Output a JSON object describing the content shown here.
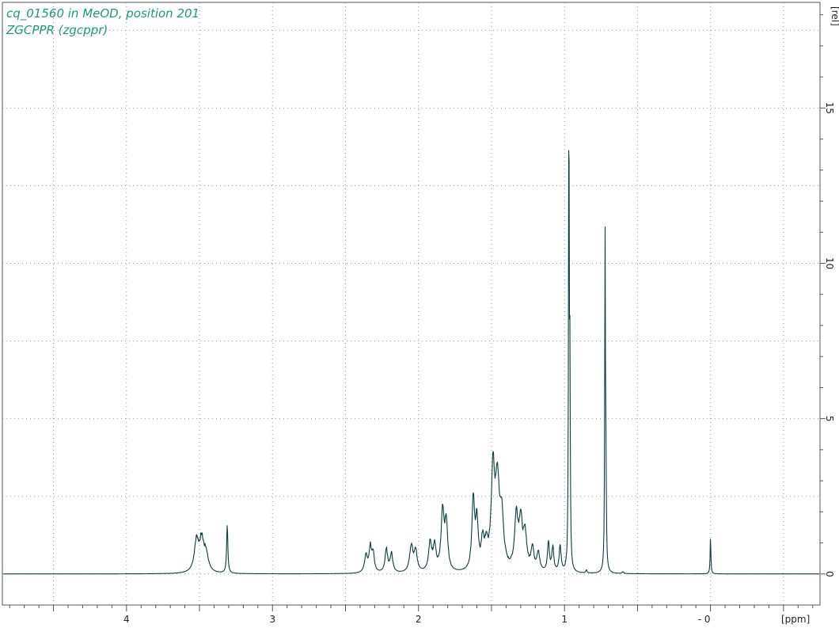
{
  "colors": {
    "spectrum": "#0e3d3d",
    "title": "#1a9a7a",
    "frame": "#555555",
    "grid": "#9a9a9a",
    "background": "#ffffff"
  },
  "chart_data": {
    "type": "line",
    "title_lines": [
      "cq_01560 in MeOD, position 201",
      "ZGCPPR (zgcppr)"
    ],
    "x_axis": {
      "unit_label": "[ppm]",
      "reversed": true,
      "range": [
        4.85,
        -0.75
      ],
      "major_ticks": [
        4,
        3,
        2,
        1,
        0
      ],
      "tick_labels": [
        "4",
        "3",
        "2",
        "1",
        "- 0"
      ]
    },
    "y_axis": {
      "unit_label": "[rel]",
      "range": [
        -1.0,
        18.4
      ],
      "major_ticks": [
        0,
        5,
        10,
        15
      ],
      "tick_labels": [
        "0",
        "5",
        "10",
        "15"
      ],
      "position": "right"
    },
    "grid": true,
    "baseline": 0,
    "series": [
      {
        "peaks": [
          {
            "shift": 3.52,
            "height": 1.0,
            "width": 0.018
          },
          {
            "shift": 3.485,
            "height": 0.95,
            "width": 0.018
          },
          {
            "shift": 3.455,
            "height": 0.55,
            "width": 0.018
          },
          {
            "shift": 3.31,
            "height": 1.55,
            "width": 0.005
          },
          {
            "shift": 2.36,
            "height": 0.55,
            "width": 0.012
          },
          {
            "shift": 2.33,
            "height": 0.8,
            "width": 0.01
          },
          {
            "shift": 2.31,
            "height": 0.55,
            "width": 0.01
          },
          {
            "shift": 2.22,
            "height": 0.75,
            "width": 0.011
          },
          {
            "shift": 2.185,
            "height": 0.6,
            "width": 0.011
          },
          {
            "shift": 2.05,
            "height": 0.85,
            "width": 0.013
          },
          {
            "shift": 2.02,
            "height": 0.7,
            "width": 0.013
          },
          {
            "shift": 1.92,
            "height": 0.9,
            "width": 0.013
          },
          {
            "shift": 1.89,
            "height": 0.8,
            "width": 0.012
          },
          {
            "shift": 1.835,
            "height": 1.85,
            "width": 0.012
          },
          {
            "shift": 1.81,
            "height": 1.5,
            "width": 0.012
          },
          {
            "shift": 1.625,
            "height": 2.25,
            "width": 0.011
          },
          {
            "shift": 1.6,
            "height": 1.5,
            "width": 0.011
          },
          {
            "shift": 1.56,
            "height": 0.9,
            "width": 0.012
          },
          {
            "shift": 1.535,
            "height": 0.7,
            "width": 0.012
          },
          {
            "shift": 1.49,
            "height": 3.1,
            "width": 0.014
          },
          {
            "shift": 1.46,
            "height": 2.6,
            "width": 0.016
          },
          {
            "shift": 1.43,
            "height": 1.6,
            "width": 0.016
          },
          {
            "shift": 1.33,
            "height": 1.7,
            "width": 0.014
          },
          {
            "shift": 1.3,
            "height": 1.5,
            "width": 0.014
          },
          {
            "shift": 1.27,
            "height": 1.1,
            "width": 0.014
          },
          {
            "shift": 1.22,
            "height": 0.75,
            "width": 0.012
          },
          {
            "shift": 1.18,
            "height": 0.6,
            "width": 0.012
          },
          {
            "shift": 1.11,
            "height": 0.95,
            "width": 0.008
          },
          {
            "shift": 1.08,
            "height": 0.8,
            "width": 0.008
          },
          {
            "shift": 1.03,
            "height": 0.85,
            "width": 0.008
          },
          {
            "shift": 0.97,
            "height": 14.9,
            "width": 0.003
          },
          {
            "shift": 0.963,
            "height": 5.9,
            "width": 0.003
          },
          {
            "shift": 0.85,
            "height": 0.1,
            "width": 0.005
          },
          {
            "shift": 0.722,
            "height": 10.7,
            "width": 0.003
          },
          {
            "shift": 0.716,
            "height": 2.5,
            "width": 0.003
          },
          {
            "shift": 0.6,
            "height": 0.06,
            "width": 0.006
          },
          {
            "shift": 0.0,
            "height": 1.25,
            "width": 0.003
          }
        ]
      }
    ]
  }
}
